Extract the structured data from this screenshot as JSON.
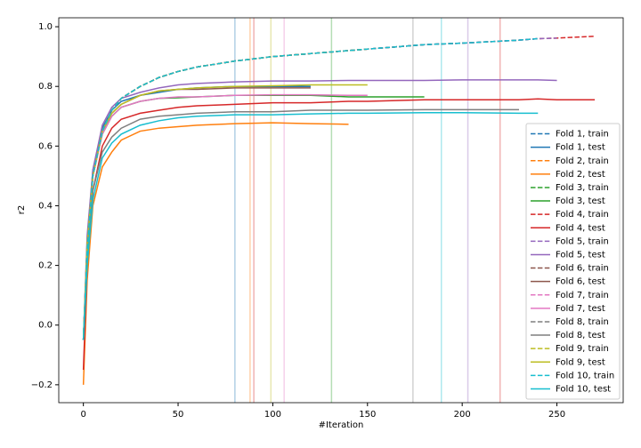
{
  "chart_data": {
    "type": "line",
    "x_label": "#Iteration",
    "y_label": "r2",
    "x": [
      0,
      2,
      5,
      10,
      15,
      20,
      30,
      40,
      50,
      60,
      80,
      100,
      120,
      140,
      150,
      180,
      200,
      230,
      240,
      250,
      270
    ],
    "xlim": [
      -13,
      285
    ],
    "ylim": [
      -0.26,
      1.03
    ],
    "xticks": [
      0,
      50,
      100,
      150,
      200,
      250
    ],
    "yticks": [
      {
        "value": -0.2,
        "label": "−0.2"
      },
      {
        "value": 0,
        "label": "0.0"
      },
      {
        "value": 0.2,
        "label": "0.2"
      },
      {
        "value": 0.4,
        "label": "0.4"
      },
      {
        "value": 0.6,
        "label": "0.6"
      },
      {
        "value": 0.8,
        "label": "0.8"
      },
      {
        "value": 1,
        "label": "1.0"
      }
    ],
    "legend": "lower right",
    "vlines": [
      80,
      88,
      90,
      99,
      106,
      131,
      174,
      189,
      203,
      220
    ],
    "vline_colors": [
      "#1f77b4",
      "#ff7f0e",
      "#d62728",
      "#bcbd22",
      "#e377c2",
      "#2ca02c",
      "#7f7f7f",
      "#17becf",
      "#9467bd",
      "#d62728"
    ],
    "series": [
      {
        "name": "Fold 1, train",
        "color": "#1f77b4",
        "dash": true,
        "values": [
          -0.05,
          0.25,
          0.5,
          0.65,
          0.72,
          0.76,
          0.8,
          0.83,
          0.85,
          0.865,
          0.885,
          0.9,
          0.91,
          0.92,
          0.925,
          0.94,
          0.945,
          0.955,
          0.96,
          null,
          null
        ]
      },
      {
        "name": "Fold 1, test",
        "color": "#1f77b4",
        "dash": false,
        "values": [
          -0.05,
          0.28,
          0.52,
          0.66,
          0.72,
          0.75,
          0.77,
          0.78,
          0.79,
          0.795,
          0.8,
          0.8,
          0.8,
          null,
          null,
          null,
          null,
          null,
          null,
          null,
          null
        ]
      },
      {
        "name": "Fold 2, train",
        "color": "#ff7f0e",
        "dash": true,
        "values": [
          -0.05,
          0.25,
          0.5,
          0.65,
          0.72,
          0.76,
          0.8,
          0.83,
          0.85,
          0.865,
          0.885,
          0.9,
          0.91,
          0.92,
          null,
          null,
          null,
          null,
          null,
          null,
          null
        ]
      },
      {
        "name": "Fold 2, test",
        "color": "#ff7f0e",
        "dash": false,
        "values": [
          -0.2,
          0.15,
          0.4,
          0.53,
          0.58,
          0.62,
          0.65,
          0.66,
          0.665,
          0.67,
          0.675,
          0.678,
          0.675,
          0.673,
          null,
          null,
          null,
          null,
          null,
          null,
          null
        ]
      },
      {
        "name": "Fold 3, train",
        "color": "#2ca02c",
        "dash": true,
        "values": [
          -0.05,
          0.25,
          0.5,
          0.65,
          0.72,
          0.76,
          0.8,
          0.83,
          0.85,
          0.865,
          0.885,
          0.9,
          0.91,
          0.92,
          0.925,
          0.94,
          null,
          null,
          null,
          null,
          null
        ]
      },
      {
        "name": "Fold 3, test",
        "color": "#2ca02c",
        "dash": false,
        "values": [
          -0.05,
          0.25,
          0.5,
          0.64,
          0.7,
          0.73,
          0.75,
          0.76,
          0.762,
          0.765,
          0.77,
          0.77,
          0.77,
          0.765,
          0.765,
          0.765,
          null,
          null,
          null,
          null,
          null
        ]
      },
      {
        "name": "Fold 4, train",
        "color": "#d62728",
        "dash": true,
        "values": [
          -0.05,
          0.25,
          0.5,
          0.65,
          0.72,
          0.76,
          0.8,
          0.83,
          0.85,
          0.865,
          0.885,
          0.9,
          0.91,
          0.92,
          0.925,
          0.94,
          0.945,
          0.955,
          0.96,
          0.962,
          0.968
        ]
      },
      {
        "name": "Fold 4, test",
        "color": "#d62728",
        "dash": false,
        "values": [
          -0.15,
          0.2,
          0.45,
          0.6,
          0.66,
          0.69,
          0.71,
          0.72,
          0.73,
          0.735,
          0.74,
          0.745,
          0.745,
          0.75,
          0.75,
          0.755,
          0.755,
          0.755,
          0.758,
          0.755,
          0.755
        ]
      },
      {
        "name": "Fold 5, train",
        "color": "#9467bd",
        "dash": true,
        "values": [
          -0.05,
          0.25,
          0.5,
          0.65,
          0.72,
          0.76,
          0.8,
          0.83,
          0.85,
          0.865,
          0.885,
          0.9,
          0.91,
          0.92,
          0.925,
          0.94,
          0.945,
          0.955,
          0.96,
          0.962,
          null
        ]
      },
      {
        "name": "Fold 5, test",
        "color": "#9467bd",
        "dash": false,
        "values": [
          -0.05,
          0.3,
          0.52,
          0.67,
          0.73,
          0.76,
          0.78,
          0.795,
          0.805,
          0.81,
          0.815,
          0.818,
          0.818,
          0.82,
          0.82,
          0.82,
          0.822,
          0.822,
          0.822,
          0.82,
          null
        ]
      },
      {
        "name": "Fold 6, train",
        "color": "#8c564b",
        "dash": true,
        "values": [
          -0.05,
          0.25,
          0.5,
          0.65,
          0.72,
          0.76,
          0.8,
          0.83,
          0.85,
          0.865,
          0.885,
          0.9,
          0.91,
          null,
          null,
          null,
          null,
          null,
          null,
          null,
          null
        ]
      },
      {
        "name": "Fold 6, test",
        "color": "#8c564b",
        "dash": false,
        "values": [
          -0.05,
          0.27,
          0.5,
          0.65,
          0.71,
          0.74,
          0.77,
          0.785,
          0.79,
          0.79,
          0.795,
          0.795,
          0.795,
          null,
          null,
          null,
          null,
          null,
          null,
          null,
          null
        ]
      },
      {
        "name": "Fold 7, train",
        "color": "#e377c2",
        "dash": true,
        "values": [
          -0.05,
          0.25,
          0.5,
          0.65,
          0.72,
          0.76,
          0.8,
          0.83,
          0.85,
          0.865,
          0.885,
          0.9,
          0.91,
          0.92,
          0.925,
          null,
          null,
          null,
          null,
          null,
          null
        ]
      },
      {
        "name": "Fold 7, test",
        "color": "#e377c2",
        "dash": false,
        "values": [
          -0.05,
          0.26,
          0.5,
          0.64,
          0.7,
          0.73,
          0.75,
          0.76,
          0.765,
          0.765,
          0.77,
          0.772,
          0.772,
          0.77,
          0.77,
          null,
          null,
          null,
          null,
          null,
          null
        ]
      },
      {
        "name": "Fold 8, train",
        "color": "#7f7f7f",
        "dash": true,
        "values": [
          -0.05,
          0.25,
          0.5,
          0.65,
          0.72,
          0.76,
          0.8,
          0.83,
          0.85,
          0.865,
          0.885,
          0.9,
          0.91,
          0.92,
          0.925,
          0.94,
          0.945,
          0.955,
          null,
          null,
          null
        ]
      },
      {
        "name": "Fold 8, test",
        "color": "#7f7f7f",
        "dash": false,
        "values": [
          -0.05,
          0.22,
          0.45,
          0.58,
          0.63,
          0.66,
          0.69,
          0.7,
          0.705,
          0.71,
          0.715,
          0.715,
          0.72,
          0.72,
          0.72,
          0.722,
          0.722,
          0.722,
          null,
          null,
          null
        ]
      },
      {
        "name": "Fold 9, train",
        "color": "#bcbd22",
        "dash": true,
        "values": [
          -0.05,
          0.25,
          0.5,
          0.65,
          0.72,
          0.76,
          0.8,
          0.83,
          0.85,
          0.865,
          0.885,
          0.9,
          0.91,
          0.92,
          0.925,
          null,
          null,
          null,
          null,
          null,
          null
        ]
      },
      {
        "name": "Fold 9, test",
        "color": "#bcbd22",
        "dash": false,
        "values": [
          -0.05,
          0.27,
          0.5,
          0.65,
          0.71,
          0.74,
          0.77,
          0.785,
          0.79,
          0.795,
          0.8,
          0.802,
          0.805,
          0.805,
          0.805,
          null,
          null,
          null,
          null,
          null,
          null
        ]
      },
      {
        "name": "Fold 10, train",
        "color": "#17becf",
        "dash": true,
        "values": [
          -0.05,
          0.25,
          0.5,
          0.65,
          0.72,
          0.76,
          0.8,
          0.83,
          0.85,
          0.865,
          0.885,
          0.9,
          0.91,
          0.92,
          0.925,
          0.94,
          0.945,
          0.955,
          0.96,
          null,
          null
        ]
      },
      {
        "name": "Fold 10, test",
        "color": "#17becf",
        "dash": false,
        "values": [
          -0.05,
          0.2,
          0.42,
          0.56,
          0.61,
          0.64,
          0.67,
          0.685,
          0.695,
          0.7,
          0.705,
          0.705,
          0.708,
          0.71,
          0.71,
          0.712,
          0.712,
          0.71,
          0.71,
          null,
          null
        ]
      }
    ]
  }
}
